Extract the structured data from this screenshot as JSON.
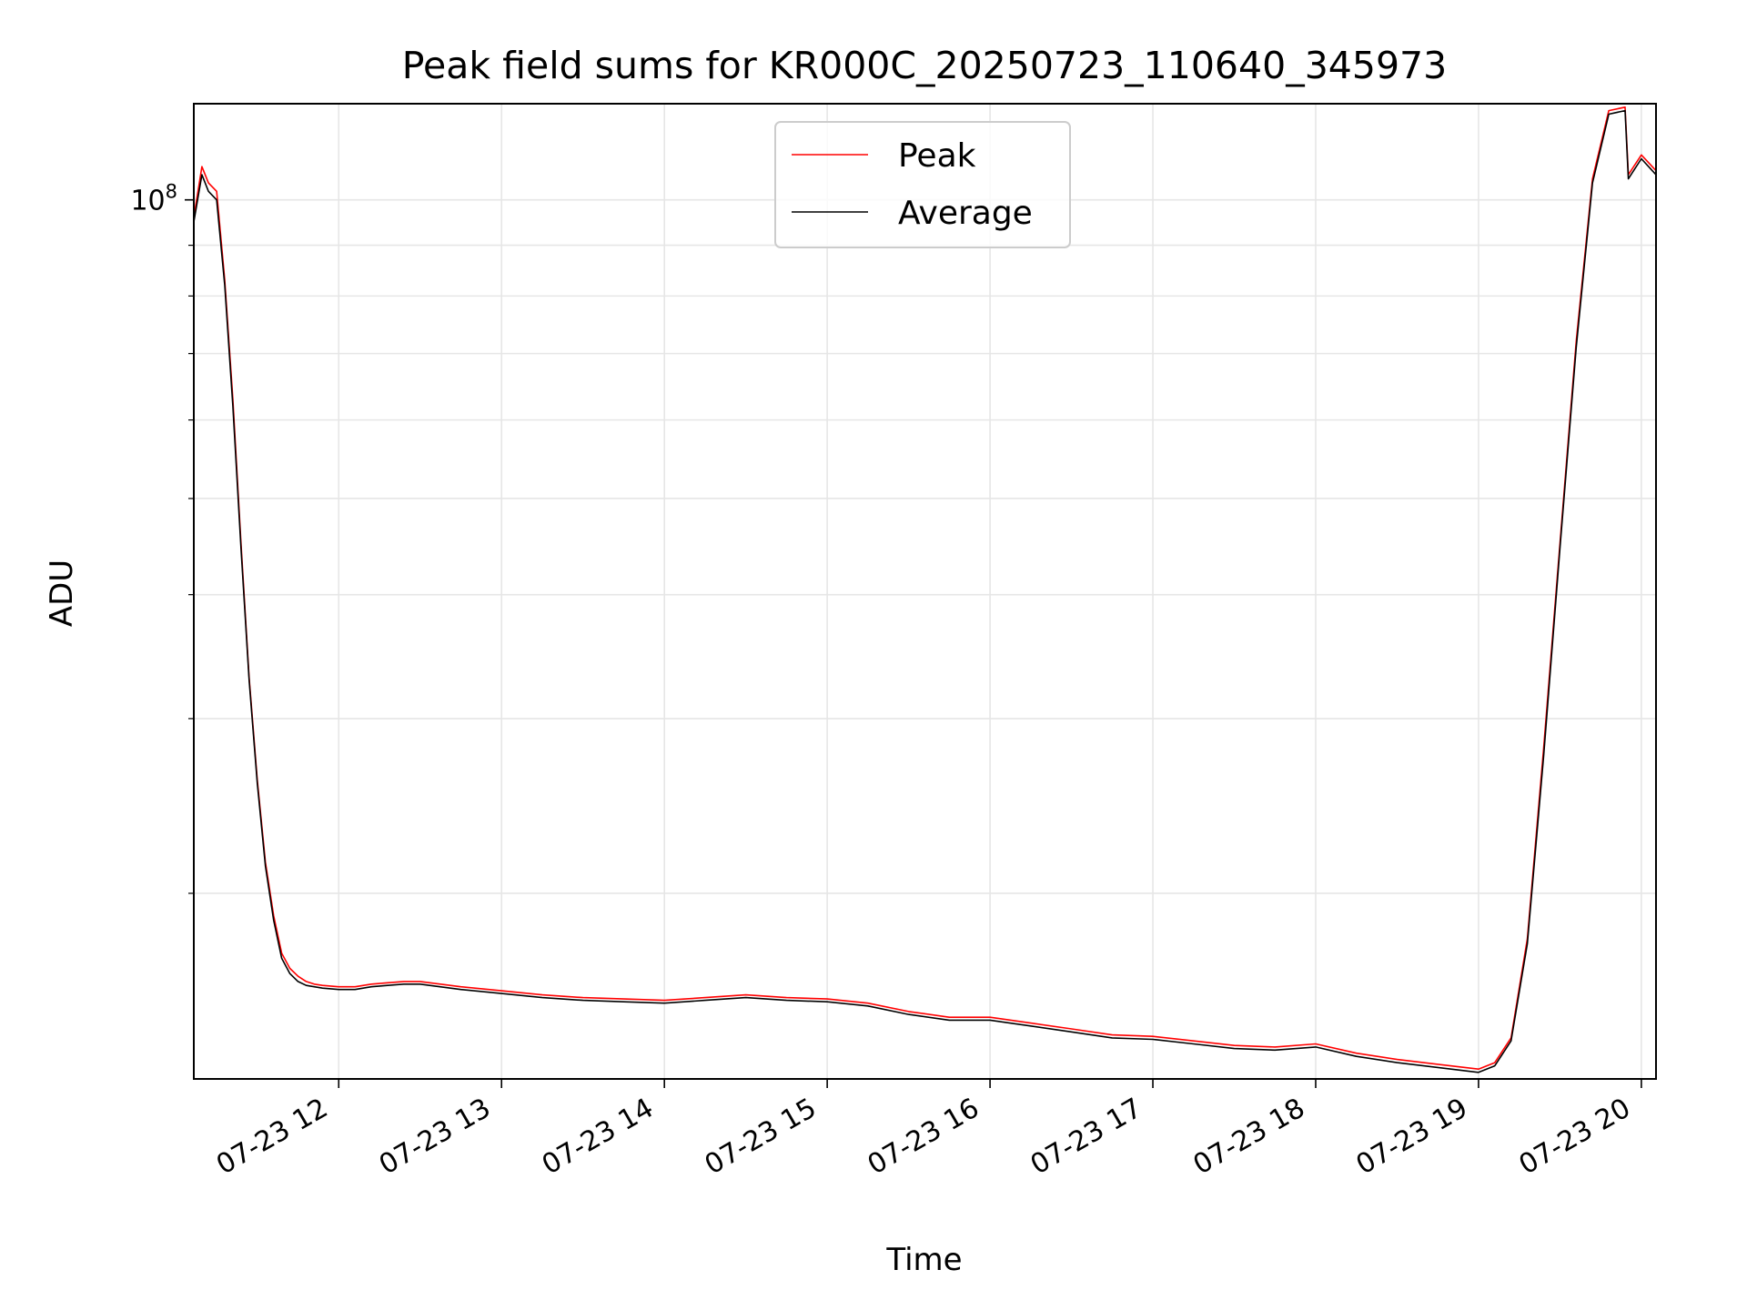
{
  "chart_data": {
    "type": "line",
    "title": "Peak field sums for KR000C_20250723_110640_345973",
    "xlabel": "Time",
    "ylabel": "ADU",
    "y_scale": "log",
    "y_tick_label": "10^8",
    "y_tick_base": "10",
    "y_tick_exp": "8",
    "ylim": [
      13000000,
      125000000
    ],
    "x_tick_labels": [
      "07-23 12",
      "07-23 13",
      "07-23 14",
      "07-23 15",
      "07-23 16",
      "07-23 17",
      "07-23 18",
      "07-23 19",
      "07-23 20"
    ],
    "x_ticks_hours": [
      12,
      13,
      14,
      15,
      16,
      17,
      18,
      19,
      20
    ],
    "xlim_hours": [
      11.11,
      20.09
    ],
    "grid": true,
    "legend_position": "top-center",
    "series": [
      {
        "name": "Peak",
        "color": "#ff0000",
        "x_hours": [
          11.11,
          11.16,
          11.2,
          11.25,
          11.3,
          11.35,
          11.4,
          11.45,
          11.5,
          11.55,
          11.6,
          11.65,
          11.7,
          11.75,
          11.8,
          11.85,
          11.9,
          12.0,
          12.1,
          12.2,
          12.3,
          12.4,
          12.5,
          12.75,
          13.0,
          13.25,
          13.5,
          13.75,
          14.0,
          14.25,
          14.5,
          14.75,
          15.0,
          15.25,
          15.5,
          15.75,
          16.0,
          16.25,
          16.5,
          16.75,
          17.0,
          17.25,
          17.5,
          17.75,
          18.0,
          18.25,
          18.5,
          18.75,
          19.0,
          19.1,
          19.2,
          19.3,
          19.4,
          19.5,
          19.6,
          19.7,
          19.8,
          19.9,
          19.92,
          20.0,
          20.09
        ],
        "values": [
          96000000,
          108000000,
          104000000,
          102000000,
          83000000,
          63000000,
          45000000,
          33000000,
          26000000,
          21500000,
          19000000,
          17400000,
          16800000,
          16500000,
          16300000,
          16200000,
          16150000,
          16100000,
          16100000,
          16200000,
          16250000,
          16300000,
          16300000,
          16100000,
          15950000,
          15800000,
          15700000,
          15650000,
          15600000,
          15700000,
          15800000,
          15700000,
          15650000,
          15500000,
          15200000,
          15000000,
          15000000,
          14800000,
          14600000,
          14400000,
          14350000,
          14200000,
          14050000,
          14000000,
          14100000,
          13800000,
          13600000,
          13450000,
          13300000,
          13500000,
          14300000,
          18000000,
          28000000,
          45000000,
          72000000,
          105000000,
          123000000,
          124000000,
          106000000,
          111000000,
          107000000
        ]
      },
      {
        "name": "Average",
        "color": "#000000",
        "x_hours": [
          11.11,
          11.16,
          11.2,
          11.25,
          11.3,
          11.35,
          11.4,
          11.45,
          11.5,
          11.55,
          11.6,
          11.65,
          11.7,
          11.75,
          11.8,
          11.85,
          11.9,
          12.0,
          12.1,
          12.2,
          12.3,
          12.4,
          12.5,
          12.75,
          13.0,
          13.25,
          13.5,
          13.75,
          14.0,
          14.25,
          14.5,
          14.75,
          15.0,
          15.25,
          15.5,
          15.75,
          16.0,
          16.25,
          16.5,
          16.75,
          17.0,
          17.25,
          17.5,
          17.75,
          18.0,
          18.25,
          18.5,
          18.75,
          19.0,
          19.1,
          19.2,
          19.3,
          19.4,
          19.5,
          19.6,
          19.7,
          19.8,
          19.9,
          19.92,
          20.0,
          20.09
        ],
        "values": [
          95000000,
          106000000,
          102000000,
          100000000,
          82000000,
          62000000,
          44500000,
          32800000,
          25800000,
          21300000,
          18800000,
          17200000,
          16600000,
          16300000,
          16150000,
          16100000,
          16050000,
          16000000,
          16000000,
          16100000,
          16150000,
          16200000,
          16200000,
          16000000,
          15850000,
          15700000,
          15600000,
          15550000,
          15500000,
          15600000,
          15700000,
          15600000,
          15550000,
          15400000,
          15100000,
          14900000,
          14900000,
          14700000,
          14500000,
          14300000,
          14250000,
          14100000,
          13950000,
          13900000,
          14000000,
          13700000,
          13500000,
          13350000,
          13200000,
          13400000,
          14200000,
          17800000,
          27500000,
          44500000,
          71000000,
          104000000,
          122000000,
          123000000,
          105000000,
          110000000,
          106000000
        ]
      }
    ]
  }
}
